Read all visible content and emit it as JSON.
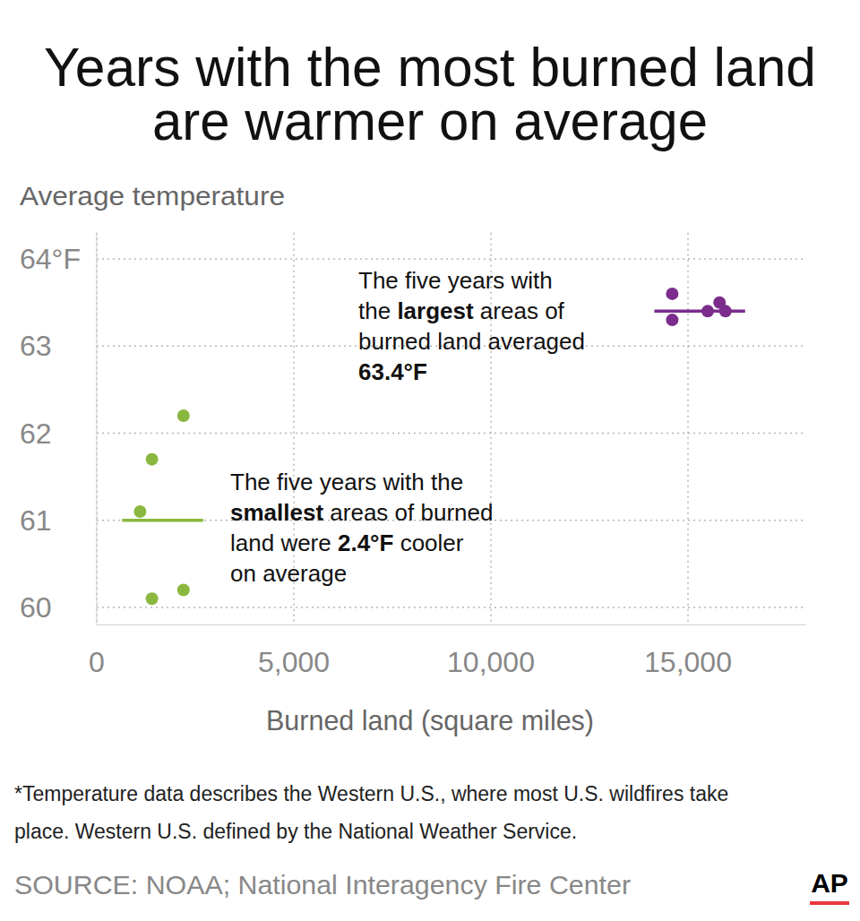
{
  "chart_data": {
    "type": "scatter",
    "title": [
      "Years with the most burned land",
      "are warmer on average"
    ],
    "y_label": "Average temperature",
    "x_label": "Burned land (square miles)",
    "xlim": [
      0,
      18000
    ],
    "xticks": [
      0,
      {
        "value": 5000,
        "label": "5,000"
      },
      {
        "value": 10000,
        "label": "10,000"
      },
      {
        "value": 15000,
        "label": "15,000"
      }
    ],
    "ylim": [
      59.8,
      64.3
    ],
    "yticks": [
      60,
      61,
      62,
      63,
      {
        "value": 64,
        "label": "64°F"
      }
    ],
    "grid": true,
    "marker": "circle",
    "series": [
      {
        "color": "#7b2c8c",
        "x": [
          14600,
          14600,
          15500,
          15800,
          15950
        ],
        "values": [
          63.6,
          63.3,
          63.4,
          63.5,
          63.4
        ],
        "average": 63.4
      },
      {
        "color": "#8ab83f",
        "x": [
          2200,
          1400,
          1100,
          1400,
          2200
        ],
        "values": [
          62.2,
          61.7,
          61.1,
          60.1,
          60.2
        ],
        "average": 61.0
      }
    ],
    "annotations": [
      {
        "lines": [
          [
            {
              "text": "The five years with"
            }
          ],
          [
            {
              "text": "the "
            },
            {
              "text": "largest",
              "bold": true
            },
            {
              "text": " areas of"
            }
          ],
          [
            {
              "text": "burned land averaged"
            }
          ],
          [
            {
              "text": "63.4°F",
              "bold": true
            }
          ]
        ]
      },
      {
        "lines": [
          [
            {
              "text": "The five years with the"
            }
          ],
          [
            {
              "text": "smallest",
              "bold": true
            },
            {
              "text": " areas of burned"
            }
          ],
          [
            {
              "text": "land were "
            },
            {
              "text": "2.4°F",
              "bold": true
            },
            {
              "text": " cooler"
            }
          ],
          [
            {
              "text": "on average"
            }
          ]
        ]
      }
    ],
    "footnote": [
      "*Temperature data describes the Western U.S., where most U.S. wildfires take",
      "place. Western U.S. defined by the National Weather Service."
    ],
    "source": "SOURCE: NOAA; National Interagency Fire Center",
    "logo": "AP"
  }
}
